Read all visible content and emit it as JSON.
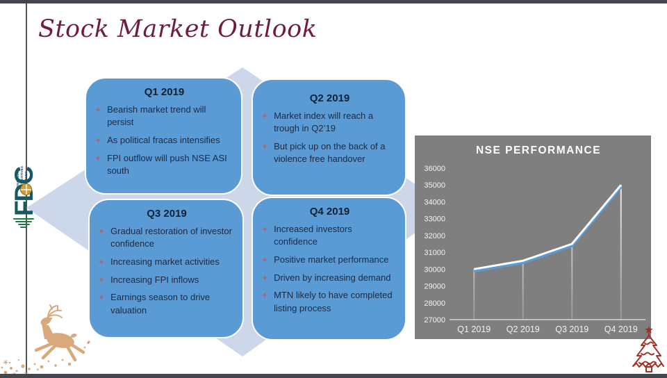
{
  "slide": {
    "title": "Stock Market Outlook"
  },
  "logo": {
    "acronym": "FDC",
    "company_lines": [
      "FINANCIAL",
      "DERIVATIVES",
      "COMPANY"
    ]
  },
  "bullet_icon": "✦",
  "quarters": [
    {
      "label": "Q1 2019",
      "bullets": [
        "Bearish market trend will persist",
        "As political fracas intensifies",
        "FPI outflow will push NSE ASI south"
      ]
    },
    {
      "label": "Q2 2019",
      "bullets": [
        "Market index will reach a trough in Q2’19",
        "But pick up on the back of a violence free handover"
      ]
    },
    {
      "label": "Q3 2019",
      "bullets": [
        "Gradual restoration of investor confidence",
        "Increasing market activities",
        "Increasing FPI inflows",
        "Earnings season to drive valuation"
      ]
    },
    {
      "label": "Q4 2019",
      "bullets": [
        "Increased investors confidence",
        "Positive market performance",
        "Driven by increasing demand",
        "MTN likely to have completed listing process"
      ]
    }
  ],
  "chart_data": {
    "type": "line",
    "title": "NSE PERFORMANCE",
    "categories": [
      "Q1 2019",
      "Q2 2019",
      "Q3 2019",
      "Q4 2019"
    ],
    "values": [
      30000,
      30500,
      31500,
      35000
    ],
    "xlabel": "",
    "ylabel": "",
    "ylim": [
      27000,
      36000
    ],
    "ytick_step": 1000,
    "grid": false,
    "legend": false,
    "background": "#7f7f7f",
    "line_color": "#ffffff",
    "line_shadow_color": "#5b9bd5",
    "drop_lines": true
  },
  "colors": {
    "box_blue": "#5b9bd5",
    "diamond_light_blue": "#cdd7ea",
    "title_maroon": "#6e1d41",
    "bullet_mauve": "#a4687a",
    "chart_background": "#7f7f7f",
    "border_bar": "#43474b",
    "deer_tan": "#d9a97c",
    "tree_red": "#a33026",
    "logo_green": "#1e7a45",
    "logo_teal": "#155a5e"
  }
}
